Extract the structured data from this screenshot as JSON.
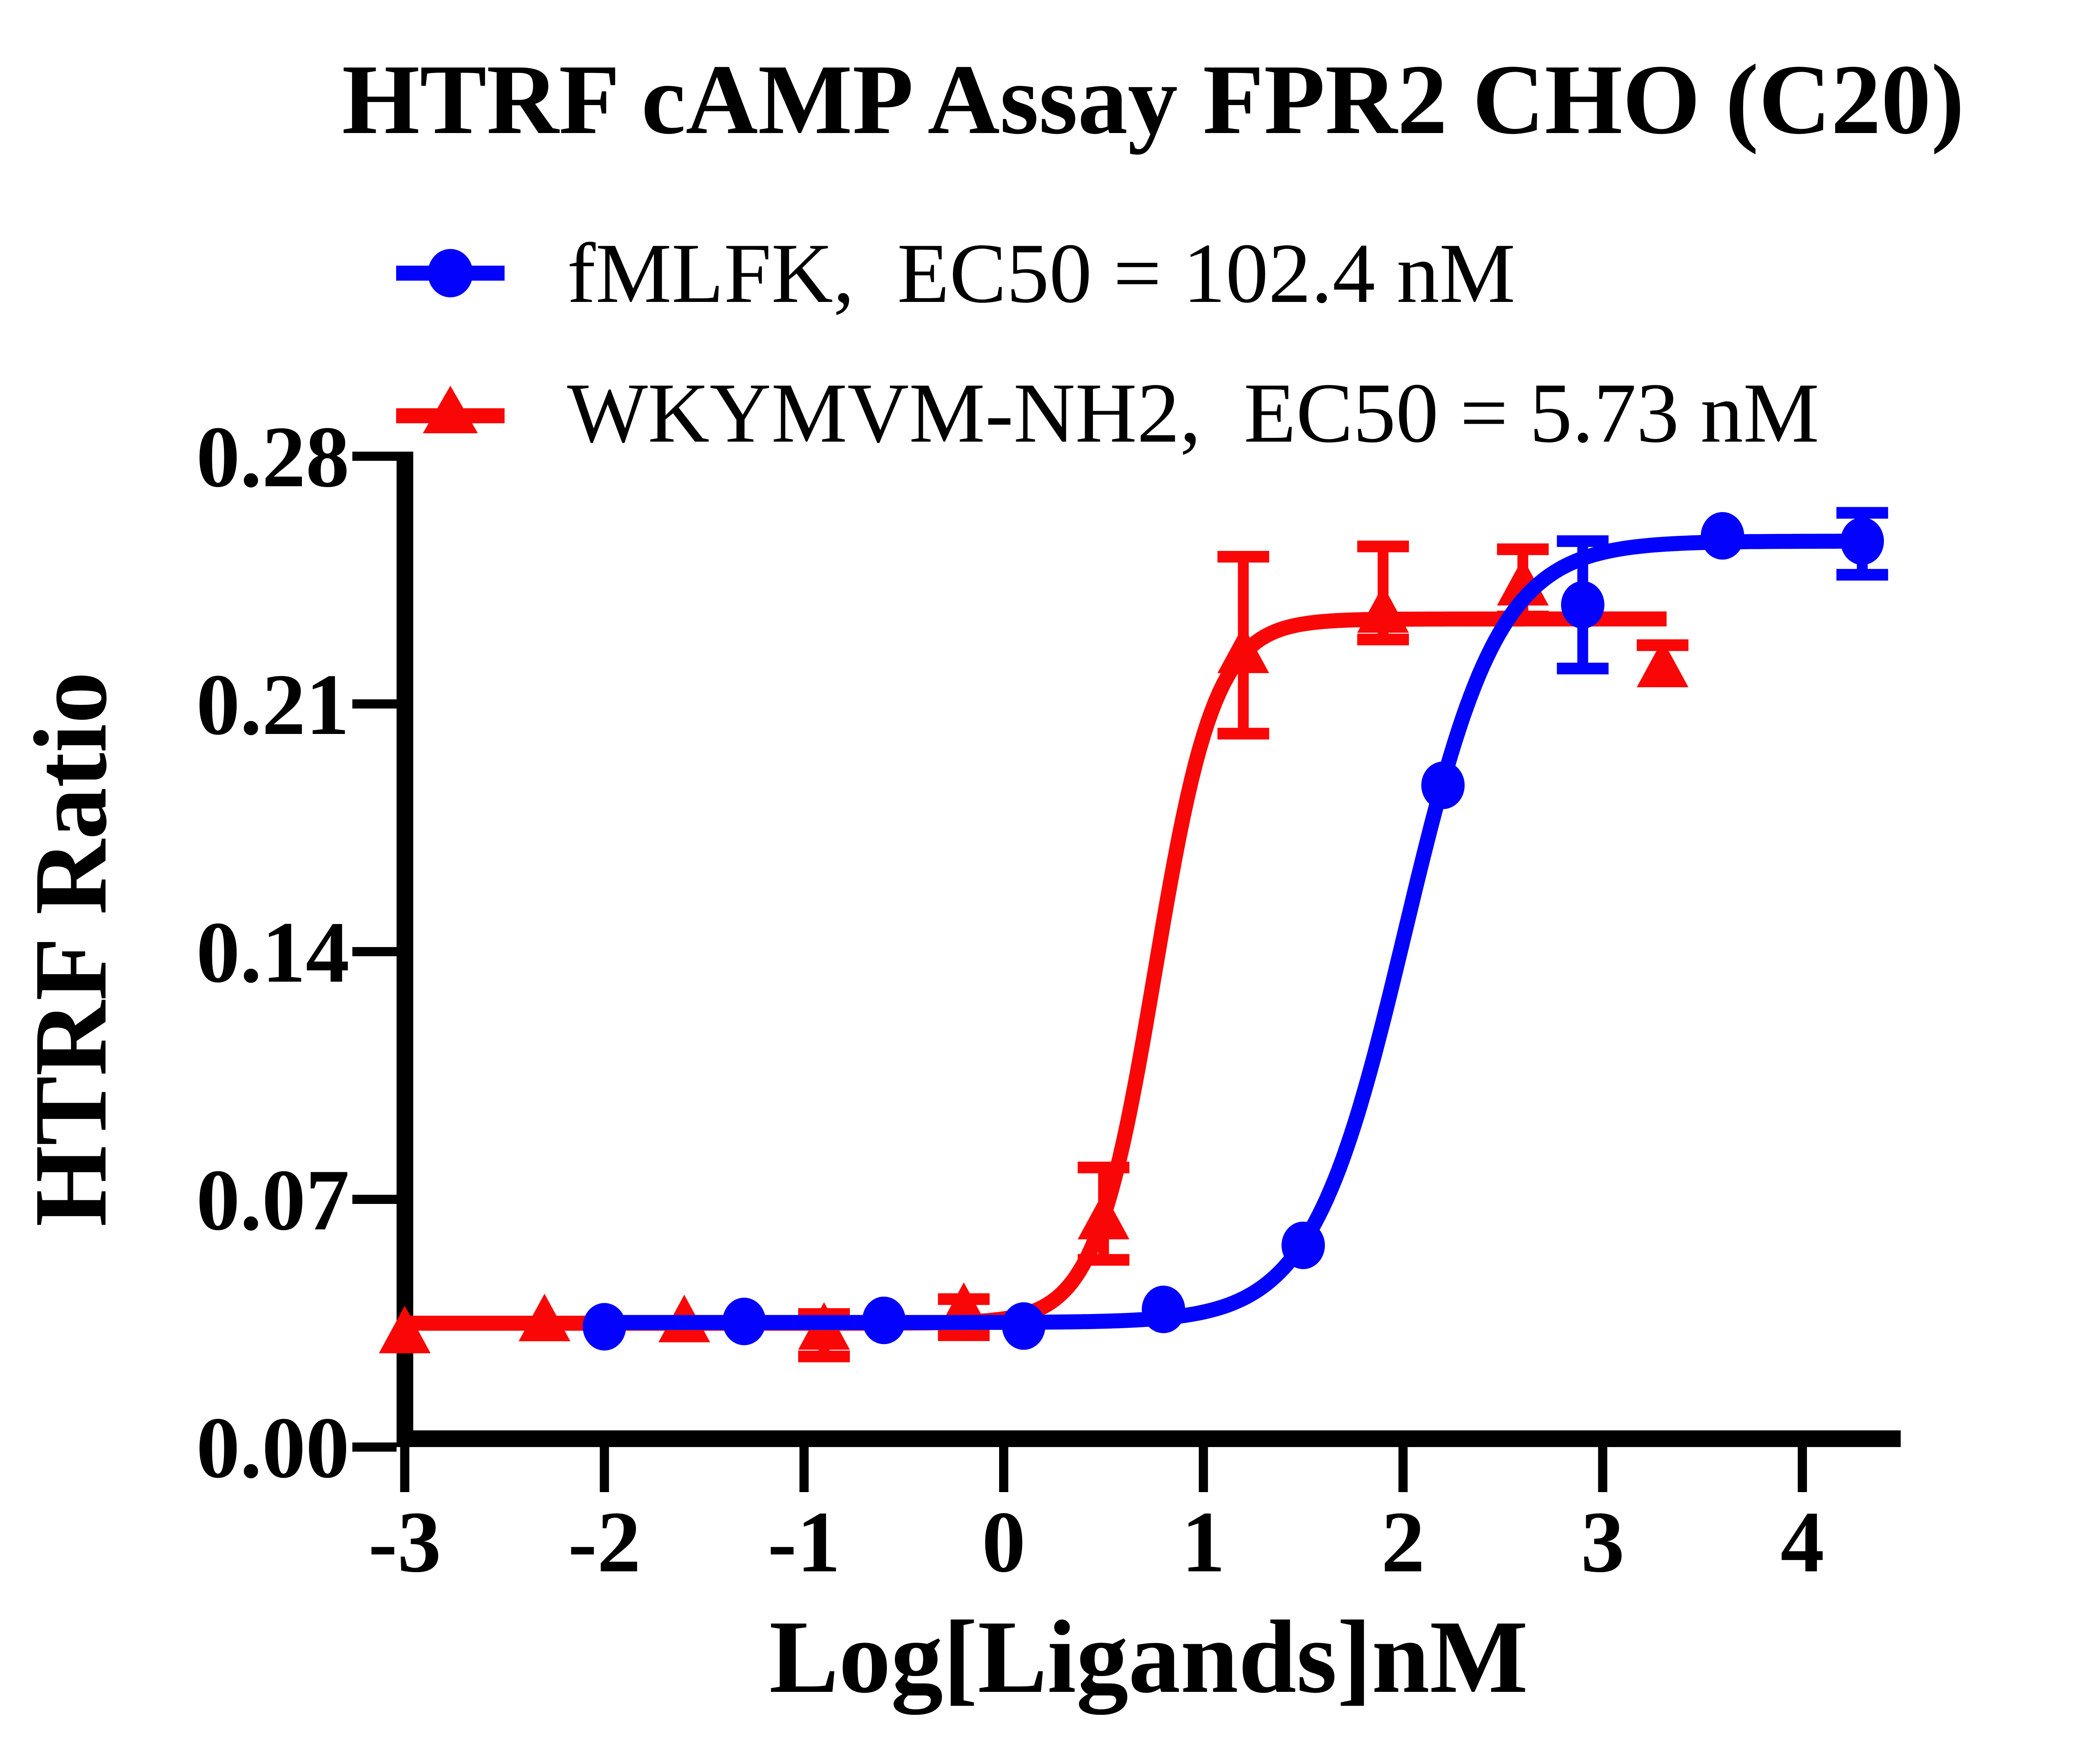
{
  "title": "HTRF cAMP Assay FPR2 CHO (C20)",
  "legend": [
    {
      "label": "fMLFK,  EC50 = 102.4 nM",
      "marker": "circle",
      "color": "#0202FD"
    },
    {
      "label": "WKYMVM-NH2,  EC50 = 5.73 nM",
      "marker": "triangle",
      "color": "#F90707"
    }
  ],
  "chart_data": {
    "type": "scatter",
    "title": "HTRF cAMP Assay FPR2 CHO (C20)",
    "xlabel": "Log[Ligands]nM",
    "ylabel": "HTRF Ratio",
    "xlim": [
      -3,
      4
    ],
    "ylim": [
      0,
      0.28
    ],
    "x_ticks": [
      -3,
      -2,
      -1,
      0,
      1,
      2,
      3,
      4
    ],
    "y_ticks": [
      0.0,
      0.07,
      0.14,
      0.21,
      0.28
    ],
    "y_tick_decimals": 2,
    "grid": false,
    "legend_position": "top-left",
    "axis_color": "#000000",
    "background_color": "#ffffff",
    "series": [
      {
        "name": "WKYMVM-NH2",
        "ec50_nM": 5.73,
        "color": "#F90707",
        "marker": "triangle",
        "points": [
          {
            "x": -3.0,
            "y": 0.0324,
            "ep": 0,
            "em": 0
          },
          {
            "x": -2.3,
            "y": 0.0358,
            "ep": 0,
            "em": 0
          },
          {
            "x": -1.6,
            "y": 0.0355,
            "ep": 0,
            "em": 0
          },
          {
            "x": -0.9,
            "y": 0.0334,
            "ep": 0.0042,
            "em": 0.0078
          },
          {
            "x": -0.2,
            "y": 0.039,
            "ep": 0.0028,
            "em": 0.0074
          },
          {
            "x": 0.5,
            "y": 0.0646,
            "ep": 0.0144,
            "em": 0.0117
          },
          {
            "x": 1.2,
            "y": 0.2246,
            "ep": 0.027,
            "em": 0.023
          },
          {
            "x": 1.9,
            "y": 0.236,
            "ep": 0.0185,
            "em": 0.0078
          },
          {
            "x": 2.6,
            "y": 0.2437,
            "ep": 0.01,
            "em": 0.009
          },
          {
            "x": 3.3,
            "y": 0.2206,
            "ep": 0.006,
            "em": 0
          }
        ],
        "fit": {
          "bottom": 0.035,
          "top": 0.234,
          "log_ec50": 0.758,
          "hill": 2.9,
          "x_start": -3.0,
          "x_end": 3.32
        }
      },
      {
        "name": "fMLFK",
        "ec50_nM": 102.4,
        "color": "#0202FD",
        "marker": "circle",
        "points": [
          {
            "x": -2.0,
            "y": 0.034,
            "ep": 0,
            "em": 0
          },
          {
            "x": -1.3,
            "y": 0.0355,
            "ep": 0,
            "em": 0
          },
          {
            "x": -0.6,
            "y": 0.0358,
            "ep": 0,
            "em": 0
          },
          {
            "x": 0.1,
            "y": 0.0342,
            "ep": 0,
            "em": 0
          },
          {
            "x": 0.8,
            "y": 0.0389,
            "ep": 0,
            "em": 0
          },
          {
            "x": 1.5,
            "y": 0.057,
            "ep": 0,
            "em": 0
          },
          {
            "x": 2.2,
            "y": 0.187,
            "ep": 0,
            "em": 0
          },
          {
            "x": 2.9,
            "y": 0.238,
            "ep": 0.018,
            "em": 0.018
          },
          {
            "x": 3.6,
            "y": 0.2575,
            "ep": 0,
            "em": 0
          },
          {
            "x": 4.3,
            "y": 0.256,
            "ep": 0.008,
            "em": 0.0095
          }
        ],
        "fit": {
          "bottom": 0.0352,
          "top": 0.256,
          "log_ec50": 2.01,
          "hill": 1.85,
          "x_start": -2.0,
          "x_end": 4.33
        }
      }
    ]
  }
}
